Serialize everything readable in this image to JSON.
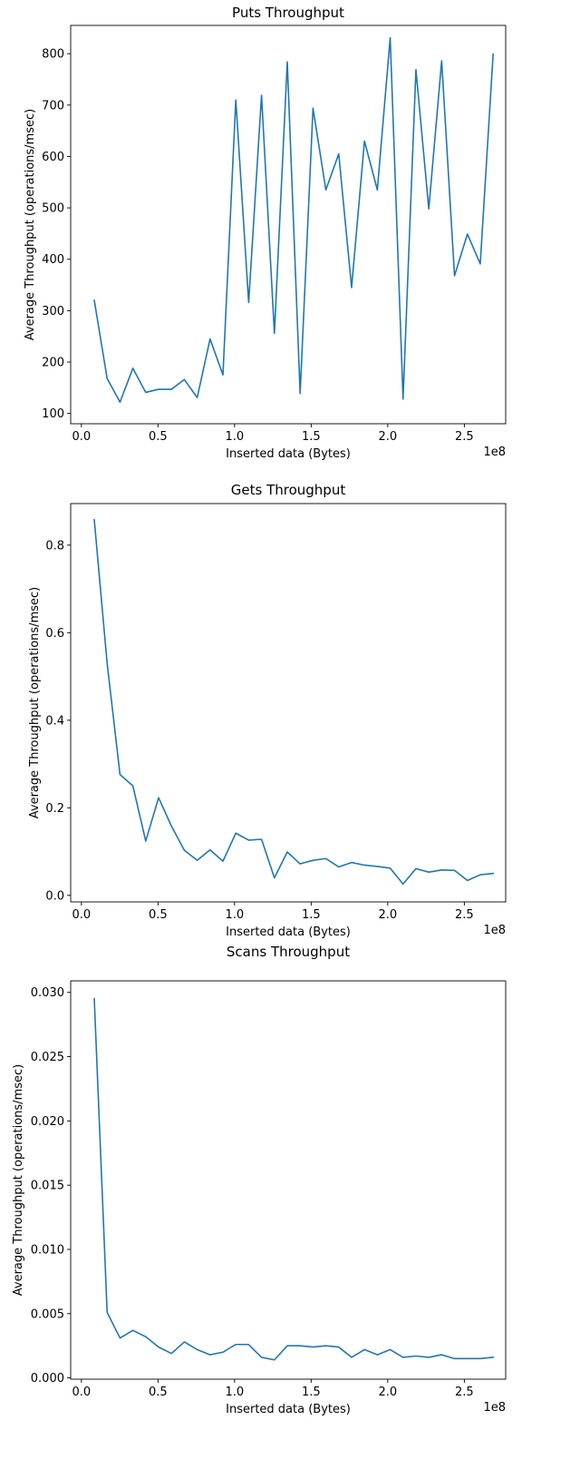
{
  "chart_data": [
    {
      "type": "line",
      "title": "Puts Throughput",
      "xlabel": "Inserted data (Bytes)",
      "ylabel": "Average Throughput (operations/msec)",
      "x_offset_label": "1e8",
      "xlim": [
        -7000000,
        277000000
      ],
      "ylim": [
        80,
        855
      ],
      "x_ticks": [
        0,
        50000000,
        100000000,
        150000000,
        200000000,
        250000000
      ],
      "x_tick_labels": [
        "0.0",
        "0.5",
        "1.0",
        "1.5",
        "2.0",
        "2.5"
      ],
      "y_ticks": [
        100,
        200,
        300,
        400,
        500,
        600,
        700,
        800
      ],
      "y_tick_labels": [
        "100",
        "200",
        "300",
        "400",
        "500",
        "600",
        "700",
        "800"
      ],
      "grid": false,
      "series": [
        {
          "color": "#1f77b4",
          "x": [
            8400000,
            16800000,
            25200000,
            33600000,
            42000000,
            50400000,
            58800000,
            67200000,
            75600000,
            84000000,
            92400000,
            100800000,
            109200000,
            117600000,
            126000000,
            134400000,
            142800000,
            151200000,
            159600000,
            168000000,
            176400000,
            184800000,
            193200000,
            201600000,
            210000000,
            218400000,
            226800000,
            235200000,
            243600000,
            252000000,
            260400000,
            268800000
          ],
          "y": [
            320,
            168,
            122,
            188,
            141,
            147,
            147,
            166,
            131,
            245,
            175,
            710,
            316,
            719,
            256,
            784,
            139,
            694,
            535,
            605,
            345,
            630,
            535,
            831,
            128,
            769,
            498,
            786,
            368,
            449,
            391,
            799
          ]
        }
      ]
    },
    {
      "type": "line",
      "title": "Gets Throughput",
      "xlabel": "Inserted data (Bytes)",
      "ylabel": "Average Throughput (operations/msec)",
      "x_offset_label": "1e8",
      "xlim": [
        -7000000,
        277000000
      ],
      "ylim": [
        -0.015,
        0.895
      ],
      "x_ticks": [
        0,
        50000000,
        100000000,
        150000000,
        200000000,
        250000000
      ],
      "x_tick_labels": [
        "0.0",
        "0.5",
        "1.0",
        "1.5",
        "2.0",
        "2.5"
      ],
      "y_ticks": [
        0,
        0.2,
        0.4,
        0.6,
        0.8
      ],
      "y_tick_labels": [
        "0.0",
        "0.2",
        "0.4",
        "0.6",
        "0.8"
      ],
      "grid": false,
      "series": [
        {
          "color": "#1f77b4",
          "x": [
            8400000,
            16800000,
            25200000,
            33600000,
            42000000,
            50400000,
            58800000,
            67200000,
            75600000,
            84000000,
            92400000,
            100800000,
            109200000,
            117600000,
            126000000,
            134400000,
            142800000,
            151200000,
            159600000,
            168000000,
            176400000,
            184800000,
            193200000,
            201600000,
            210000000,
            218400000,
            226800000,
            235200000,
            243600000,
            252000000,
            260400000,
            268800000
          ],
          "y": [
            0.858,
            0.53,
            0.276,
            0.25,
            0.124,
            0.223,
            0.158,
            0.103,
            0.08,
            0.104,
            0.078,
            0.142,
            0.126,
            0.128,
            0.04,
            0.099,
            0.072,
            0.08,
            0.084,
            0.065,
            0.075,
            0.069,
            0.066,
            0.062,
            0.026,
            0.061,
            0.053,
            0.058,
            0.057,
            0.034,
            0.047,
            0.05
          ]
        }
      ]
    },
    {
      "type": "line",
      "title": "Scans Throughput",
      "xlabel": "Inserted data (Bytes)",
      "ylabel": "Average Throughput (operations/msec)",
      "x_offset_label": "1e8",
      "xlim": [
        -7000000,
        277000000
      ],
      "ylim": [
        -0.0001,
        0.0309
      ],
      "x_ticks": [
        0,
        50000000,
        100000000,
        150000000,
        200000000,
        250000000
      ],
      "x_tick_labels": [
        "0.0",
        "0.5",
        "1.0",
        "1.5",
        "2.0",
        "2.5"
      ],
      "y_ticks": [
        0,
        0.005,
        0.01,
        0.015,
        0.02,
        0.025,
        0.03
      ],
      "y_tick_labels": [
        "0.000",
        "0.005",
        "0.010",
        "0.015",
        "0.020",
        "0.025",
        "0.030"
      ],
      "grid": false,
      "series": [
        {
          "color": "#1f77b4",
          "x": [
            8400000,
            16800000,
            25200000,
            33600000,
            42000000,
            50400000,
            58800000,
            67200000,
            75600000,
            84000000,
            92400000,
            100800000,
            109200000,
            117600000,
            126000000,
            134400000,
            142800000,
            151200000,
            159600000,
            168000000,
            176400000,
            184800000,
            193200000,
            201600000,
            210000000,
            218400000,
            226800000,
            235200000,
            243600000,
            252000000,
            260400000,
            268800000
          ],
          "y": [
            0.0295,
            0.0051,
            0.0031,
            0.0037,
            0.0032,
            0.0024,
            0.0019,
            0.0028,
            0.0022,
            0.0018,
            0.002,
            0.0026,
            0.0026,
            0.0016,
            0.0014,
            0.0025,
            0.0025,
            0.0024,
            0.0025,
            0.0024,
            0.0016,
            0.0022,
            0.0018,
            0.0022,
            0.0016,
            0.0017,
            0.0016,
            0.0018,
            0.0015,
            0.0015,
            0.0015,
            0.0016
          ]
        }
      ]
    }
  ]
}
